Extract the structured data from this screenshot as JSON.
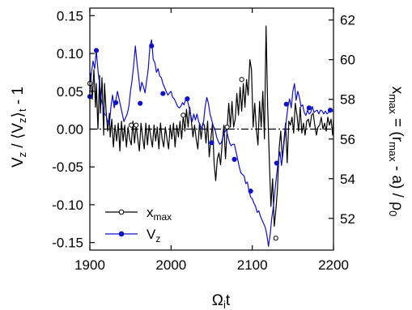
{
  "chart_data": {
    "type": "line",
    "xlabel": "Ω",
    "xlabel_sub": "i",
    "xlabel_tail": "t",
    "ylabel_left": {
      "p1": "V",
      "s1": "z",
      "p2": " / ⟨V",
      "s2": "z",
      "p3": "⟩",
      "s3": "t",
      "p4": " - 1"
    },
    "ylabel_right": {
      "p1": "x",
      "s1": "max",
      "p2": " = (r",
      "s2": "max",
      "p3": " - a) / ρ",
      "s3": "0"
    },
    "xlim": [
      1900,
      2200
    ],
    "ylim_left": [
      -0.16,
      0.16
    ],
    "ylim_right": [
      50.4,
      62.6
    ],
    "x_ticks": [
      1900,
      2000,
      2100,
      2200
    ],
    "y_left_ticks": [
      {
        "v": 0.15,
        "label": "0.15"
      },
      {
        "v": 0.1,
        "label": "0.10"
      },
      {
        "v": 0.05,
        "label": "0.05"
      },
      {
        "v": 0.0,
        "label": "0.00"
      },
      {
        "v": -0.05,
        "label": "-0.05"
      },
      {
        "v": -0.1,
        "label": "-0.10"
      },
      {
        "v": -0.15,
        "label": "-0.15"
      }
    ],
    "y_right_ticks": [
      52,
      54,
      56,
      58,
      60,
      62
    ],
    "zero_line": "dash-dot",
    "legend_position": "bottom-left",
    "series": [
      {
        "name": "x",
        "name_sub": "max",
        "axis": "right",
        "color": "#000000",
        "marker": "open-circle",
        "x": [
          1900,
          1901,
          1903,
          1905,
          1907,
          1908,
          1910,
          1912,
          1913,
          1915,
          1917,
          1918,
          1920,
          1922,
          1924,
          1925,
          1927,
          1929,
          1931,
          1933,
          1935,
          1937,
          1939,
          1941,
          1943,
          1945,
          1947,
          1949,
          1951,
          1953,
          1955,
          1957,
          1959,
          1961,
          1963,
          1965,
          1967,
          1969,
          1971,
          1973,
          1975,
          1977,
          1979,
          1981,
          1983,
          1985,
          1987,
          1989,
          1991,
          1993,
          1995,
          1997,
          1999,
          2001,
          2003,
          2005,
          2007,
          2009,
          2011,
          2013,
          2015,
          2017,
          2019,
          2021,
          2023,
          2025,
          2027,
          2029,
          2031,
          2033,
          2035,
          2037,
          2039,
          2041,
          2043,
          2045,
          2047,
          2049,
          2051,
          2053,
          2055,
          2057,
          2059,
          2061,
          2063,
          2065,
          2067,
          2069,
          2071,
          2073,
          2075,
          2077,
          2079,
          2081,
          2083,
          2085,
          2087,
          2089,
          2091,
          2093,
          2095,
          2097,
          2099,
          2101,
          2103,
          2105,
          2107,
          2109,
          2111,
          2113,
          2115,
          2117,
          2119,
          2121,
          2123,
          2125,
          2127,
          2129,
          2131,
          2133,
          2135,
          2137,
          2139,
          2141,
          2143,
          2145,
          2147,
          2149,
          2151,
          2153,
          2155,
          2157,
          2159,
          2161,
          2163,
          2165,
          2167,
          2169,
          2171,
          2173,
          2175,
          2177,
          2179,
          2181,
          2183,
          2185,
          2187,
          2189,
          2191,
          2193,
          2195,
          2197,
          2199,
          2200
        ],
        "y": [
          58.4,
          59.3,
          58.0,
          59.5,
          57.6,
          58.8,
          56.5,
          59.2,
          57.3,
          59.1,
          56.2,
          58.8,
          57.4,
          56.4,
          57.3,
          56.1,
          57.0,
          55.6,
          56.7,
          55.9,
          56.8,
          55.4,
          56.9,
          55.9,
          56.7,
          55.6,
          56.6,
          56.0,
          55.7,
          56.9,
          55.8,
          56.7,
          56.0,
          55.4,
          56.8,
          56.1,
          55.5,
          56.8,
          55.7,
          56.7,
          56.1,
          55.6,
          56.7,
          55.9,
          56.6,
          55.5,
          56.8,
          56.0,
          55.6,
          56.6,
          56.0,
          55.5,
          56.7,
          56.0,
          56.8,
          55.6,
          56.7,
          56.1,
          56.9,
          56.0,
          57.2,
          56.4,
          57.5,
          56.6,
          57.6,
          56.9,
          56.1,
          56.7,
          56.0,
          55.5,
          56.8,
          56.0,
          56.8,
          56.7,
          55.8,
          56.9,
          55.1,
          56.0,
          56.8,
          54.8,
          53.9,
          55.0,
          55.3,
          54.7,
          55.8,
          56.7,
          55.0,
          56.5,
          57.8,
          56.6,
          57.9,
          56.6,
          57.0,
          58.3,
          57.2,
          58.6,
          57.4,
          58.8,
          57.6,
          59.0,
          58.2,
          60.0,
          59.5,
          56.6,
          57.8,
          56.5,
          55.7,
          57.9,
          56.6,
          58.4,
          56.0,
          61.7,
          57.6,
          55.0,
          52.6,
          54.0,
          51.6,
          52.4,
          53.5,
          55.5,
          56.4,
          55.0,
          55.9,
          56.8,
          54.8,
          56.9,
          56.7,
          57.1,
          56.3,
          57.8,
          57.2,
          56.4,
          57.6,
          56.3,
          56.8,
          56.2,
          56.9,
          57.0,
          56.6,
          57.2,
          57.3,
          56.7,
          56.2,
          56.6,
          56.7,
          57.1,
          56.5,
          56.8,
          56.4,
          57.1,
          56.7,
          57.0,
          56.2,
          57.0
        ],
        "marker_x": [
          1900,
          1951,
          1957,
          2015,
          2069,
          2087,
          2129
        ],
        "marker_y": [
          58.8,
          56.7,
          56.7,
          57.2,
          56.6,
          59.0,
          51.0
        ]
      },
      {
        "name": "V",
        "name_sub": "z",
        "axis": "left",
        "color": "#1010c8",
        "marker": "filled-circle",
        "x": [
          1900,
          1902,
          1904,
          1906,
          1908,
          1910,
          1912,
          1914,
          1916,
          1918,
          1920,
          1922,
          1924,
          1926,
          1928,
          1930,
          1932,
          1934,
          1936,
          1938,
          1940,
          1942,
          1944,
          1946,
          1948,
          1950,
          1952,
          1954,
          1956,
          1958,
          1960,
          1962,
          1964,
          1966,
          1968,
          1970,
          1972,
          1974,
          1976,
          1978,
          1980,
          1982,
          1984,
          1986,
          1988,
          1990,
          1992,
          1994,
          1996,
          1998,
          2000,
          2002,
          2004,
          2006,
          2008,
          2010,
          2012,
          2014,
          2016,
          2018,
          2020,
          2022,
          2024,
          2026,
          2028,
          2030,
          2032,
          2034,
          2036,
          2038,
          2040,
          2042,
          2044,
          2046,
          2048,
          2050,
          2052,
          2054,
          2056,
          2058,
          2060,
          2062,
          2064,
          2066,
          2068,
          2070,
          2072,
          2074,
          2076,
          2078,
          2080,
          2082,
          2084,
          2086,
          2088,
          2090,
          2092,
          2094,
          2096,
          2098,
          2100,
          2102,
          2104,
          2106,
          2108,
          2110,
          2112,
          2114,
          2116,
          2118,
          2120,
          2122,
          2124,
          2126,
          2128,
          2130,
          2132,
          2134,
          2136,
          2138,
          2140,
          2142,
          2144,
          2146,
          2148,
          2150,
          2152,
          2154,
          2156,
          2158,
          2160,
          2162,
          2164,
          2166,
          2168,
          2170,
          2172,
          2174,
          2176,
          2178,
          2180,
          2182,
          2184,
          2186,
          2188,
          2190,
          2192,
          2194,
          2196,
          2198,
          2200
        ],
        "y": [
          0.048,
          0.075,
          0.09,
          0.08,
          0.104,
          0.078,
          0.06,
          0.04,
          0.03,
          0.02,
          0.018,
          0.01,
          0.006,
          0.03,
          0.045,
          0.028,
          0.038,
          0.05,
          0.04,
          0.03,
          0.02,
          0.01,
          0.015,
          0.02,
          0.03,
          0.05,
          0.065,
          0.085,
          0.11,
          0.088,
          0.07,
          0.05,
          0.062,
          0.056,
          0.048,
          0.064,
          0.08,
          0.11,
          0.118,
          0.092,
          0.088,
          0.075,
          0.08,
          0.07,
          0.068,
          0.06,
          0.055,
          0.05,
          0.045,
          0.048,
          0.05,
          0.042,
          0.04,
          0.035,
          0.03,
          0.028,
          0.03,
          0.035,
          0.032,
          0.04,
          0.038,
          0.03,
          0.02,
          0.01,
          0.02,
          0.012,
          0.02,
          0.01,
          0.005,
          0.0,
          0.01,
          0.03,
          0.042,
          0.034,
          0.02,
          0.012,
          0.004,
          0.0,
          -0.01,
          -0.016,
          -0.02,
          -0.018,
          -0.01,
          -0.004,
          0.0,
          -0.01,
          -0.018,
          -0.022,
          -0.02,
          -0.02,
          -0.03,
          -0.04,
          -0.05,
          -0.058,
          -0.06,
          -0.062,
          -0.072,
          -0.07,
          -0.082,
          -0.09,
          -0.092,
          -0.098,
          -0.102,
          -0.11,
          -0.108,
          -0.115,
          -0.12,
          -0.125,
          -0.13,
          -0.14,
          -0.155,
          -0.14,
          -0.118,
          -0.102,
          -0.08,
          -0.06,
          -0.042,
          -0.03,
          -0.048,
          -0.03,
          -0.01,
          0.012,
          0.03,
          0.04,
          0.028,
          0.05,
          0.06,
          0.038,
          0.05,
          0.042,
          0.03,
          0.032,
          0.022,
          0.018,
          0.025,
          0.02,
          0.022,
          0.03,
          0.022,
          0.024,
          0.025,
          0.02,
          0.025,
          0.024,
          0.02,
          0.024,
          0.02,
          0.022,
          0.025,
          0.024,
          0.024
        ],
        "marker_x": [
          1900,
          1908,
          1932,
          1962,
          1976,
          1990,
          2020,
          2050,
          2078,
          2098,
          2130,
          2142,
          2170,
          2196
        ],
        "marker_y": [
          0.043,
          0.104,
          0.035,
          0.034,
          0.11,
          0.047,
          0.04,
          -0.018,
          -0.04,
          -0.082,
          -0.045,
          0.033,
          0.028,
          0.025
        ]
      }
    ]
  }
}
